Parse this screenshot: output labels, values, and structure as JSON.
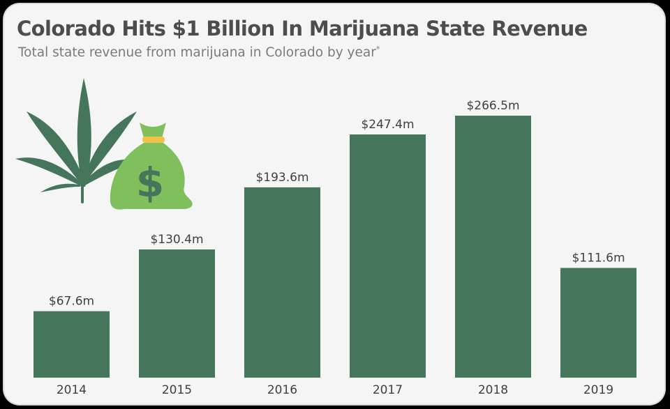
{
  "title": "Colorado Hits $1 Billion In Marijuana State Revenue",
  "subtitle": "Total state revenue from marijuana in Colorado by year",
  "subtitle_mark": "*",
  "colors": {
    "bar": "#45755a",
    "leaf": "#45755a",
    "bag": "#7fbf5c",
    "bag_tie": "#f0c24a",
    "background": "#f5f5f5"
  },
  "icons": [
    "cannabis-leaf-icon",
    "money-bag-icon"
  ],
  "chart_data": {
    "type": "bar",
    "categories": [
      "2014",
      "2015",
      "2016",
      "2017",
      "2018",
      "2019"
    ],
    "values": [
      67.6,
      130.4,
      193.6,
      247.4,
      266.5,
      111.6
    ],
    "value_labels": [
      "$67.6m",
      "$130.4m",
      "$193.6m",
      "$247.4m",
      "$266.5m",
      "$111.6m"
    ],
    "unit": "$m",
    "ylim": [
      0,
      266.5
    ],
    "grid": false,
    "legend": "none"
  }
}
